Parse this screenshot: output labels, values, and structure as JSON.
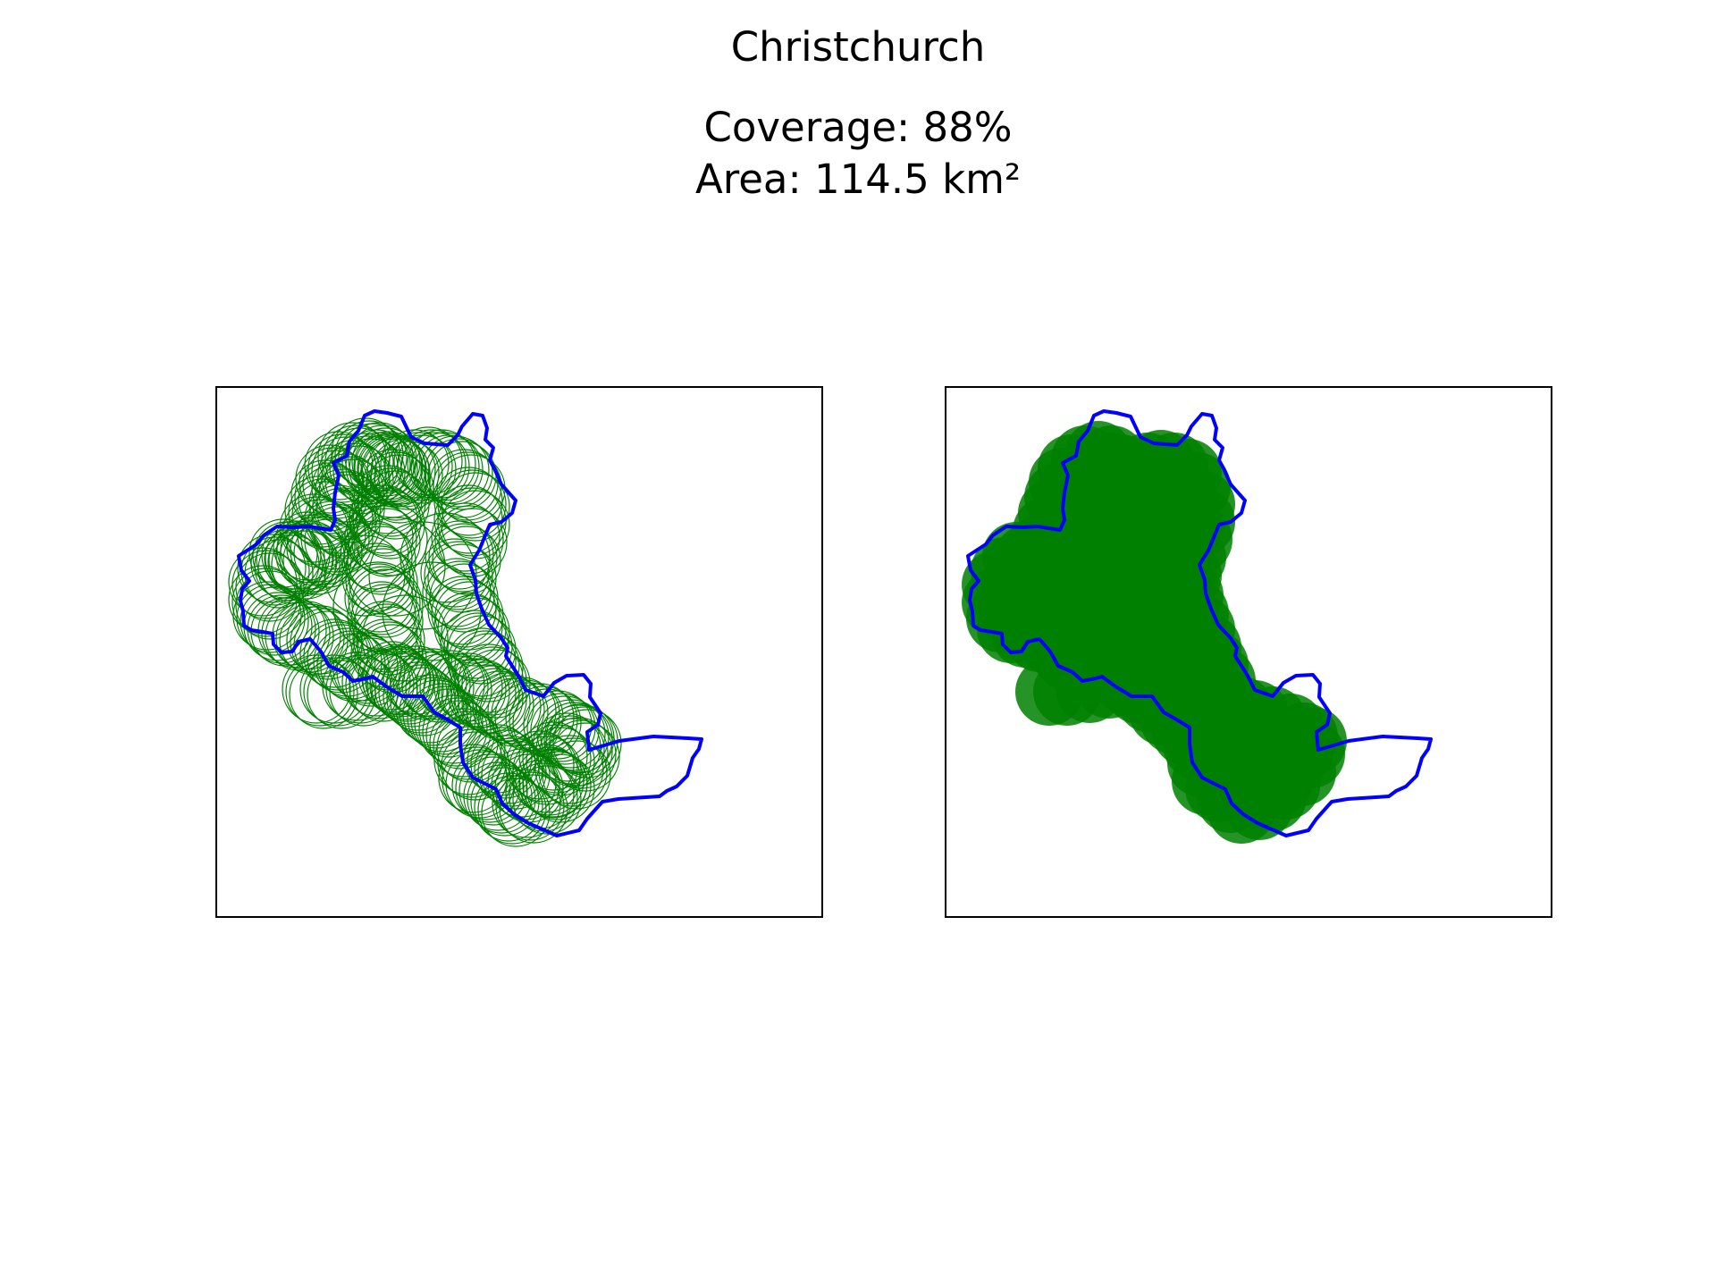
{
  "figure": {
    "title": "Christchurch",
    "coverage": "Coverage: 88%",
    "area": "Area: 114.5 km²"
  },
  "colors": {
    "boundary": "#0000ff",
    "coverage": "#008000",
    "frame": "#000000",
    "background": "#ffffff"
  },
  "panels": [
    {
      "name": "outline-circles-map",
      "style": "outline"
    },
    {
      "name": "filled-circles-map",
      "style": "filled"
    }
  ]
}
